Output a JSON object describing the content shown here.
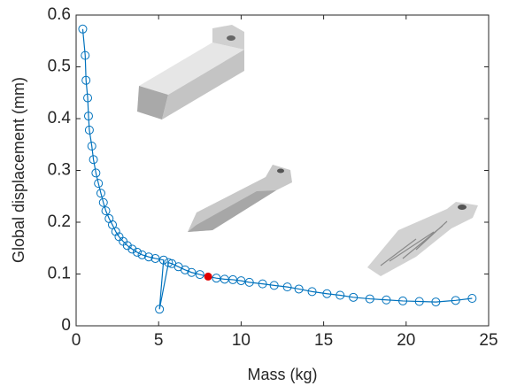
{
  "chart_data": {
    "type": "line",
    "xlabel": "Mass (kg)",
    "ylabel": "Global displacement (mm)",
    "xlim": [
      0,
      25
    ],
    "xticks": [
      0,
      5,
      10,
      15,
      20,
      25
    ],
    "ylim": [
      0,
      0.6
    ],
    "yticks": [
      0,
      0.1,
      0.2,
      0.3,
      0.4,
      0.5,
      0.6
    ],
    "series": [
      {
        "color": "#0072bd",
        "marker": "circle",
        "x": [
          0.4,
          0.55,
          0.6,
          0.7,
          0.75,
          0.8,
          0.95,
          1.05,
          1.2,
          1.35,
          1.5,
          1.65,
          1.8,
          2.0,
          2.2,
          2.4,
          2.6,
          2.85,
          3.1,
          3.4,
          3.7,
          4.0,
          4.4,
          4.8,
          5.3,
          5.05,
          5.6,
          5.8,
          6.2,
          6.6,
          7.0,
          7.5,
          8.0,
          8.5,
          9.0,
          9.5,
          10.0,
          10.5,
          11.3,
          12.0,
          12.8,
          13.5,
          14.3,
          15.2,
          16.0,
          16.8,
          17.8,
          18.8,
          19.8,
          20.8,
          21.8,
          23.0,
          24.0
        ],
        "values": [
          0.573,
          0.522,
          0.474,
          0.44,
          0.405,
          0.378,
          0.347,
          0.321,
          0.295,
          0.275,
          0.256,
          0.238,
          0.222,
          0.207,
          0.195,
          0.182,
          0.172,
          0.163,
          0.155,
          0.148,
          0.142,
          0.137,
          0.133,
          0.13,
          0.127,
          0.032,
          0.122,
          0.12,
          0.114,
          0.108,
          0.103,
          0.099,
          0.095,
          0.092,
          0.09,
          0.089,
          0.087,
          0.084,
          0.081,
          0.078,
          0.075,
          0.071,
          0.066,
          0.062,
          0.059,
          0.055,
          0.052,
          0.05,
          0.048,
          0.047,
          0.046,
          0.049,
          0.053
        ],
        "highlight": {
          "index": 32,
          "color": "#e00000"
        }
      }
    ]
  }
}
